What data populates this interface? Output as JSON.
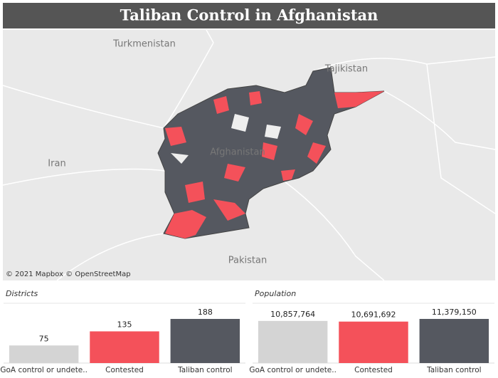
{
  "title": "Taliban Control in Afghanistan",
  "map": {
    "labels": [
      "Turkmenistan",
      "Tajikistan",
      "Iran",
      "Afghanistan",
      "Pakistan"
    ],
    "attribution": "© 2021 Mapbox © OpenStreetMap"
  },
  "chart_data": [
    {
      "type": "bar",
      "title": "Districts",
      "categories": [
        "GoA control or undete..",
        "Contested",
        "Taliban control"
      ],
      "values": [
        75,
        135,
        188
      ],
      "colors": [
        "#d4d4d4",
        "#f4515a",
        "#555860"
      ]
    },
    {
      "type": "bar",
      "title": "Population",
      "categories": [
        "GoA control or undete..",
        "Contested",
        "Taliban control"
      ],
      "values": [
        10857764,
        10691692,
        11379150
      ],
      "value_labels": [
        "10,857,764",
        "10,691,692",
        "11,379,150"
      ],
      "colors": [
        "#d4d4d4",
        "#f4515a",
        "#555860"
      ]
    }
  ]
}
